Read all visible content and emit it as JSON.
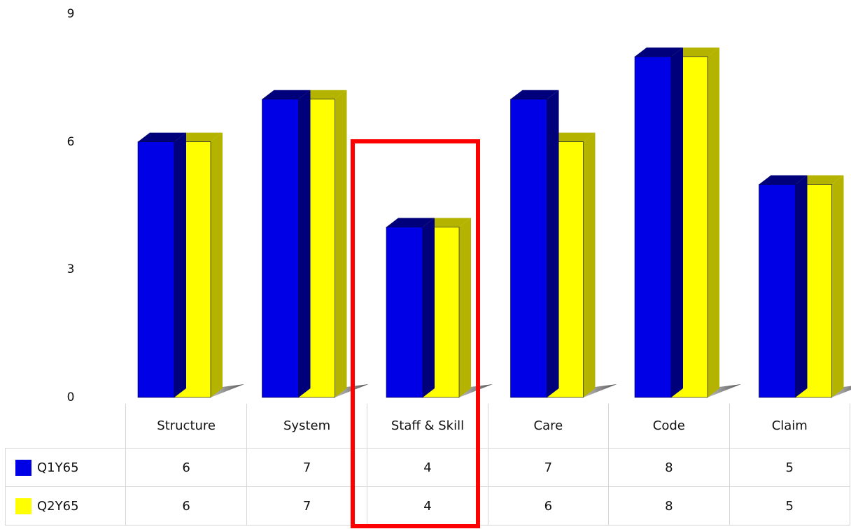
{
  "chart_data": {
    "type": "bar",
    "style": "3d-clustered-column-with-data-table",
    "categories": [
      "Structure",
      "System",
      "Staff & Skill",
      "Care",
      "Code",
      "Claim"
    ],
    "series": [
      {
        "name": "Q1Y65",
        "values": [
          6,
          7,
          4,
          7,
          8,
          5
        ],
        "color": "#0000e6",
        "side_color": "#00007a"
      },
      {
        "name": "Q2Y65",
        "values": [
          6,
          7,
          4,
          6,
          8,
          5
        ],
        "color": "#ffff00",
        "side_color": "#b3b300"
      }
    ],
    "ylim": [
      0,
      9
    ],
    "yticks": [
      "0",
      "3",
      "6",
      "9"
    ],
    "grid": false,
    "legend": "data-table",
    "highlighted_category": "Staff & Skill",
    "highlight_color": "#ff0000"
  }
}
